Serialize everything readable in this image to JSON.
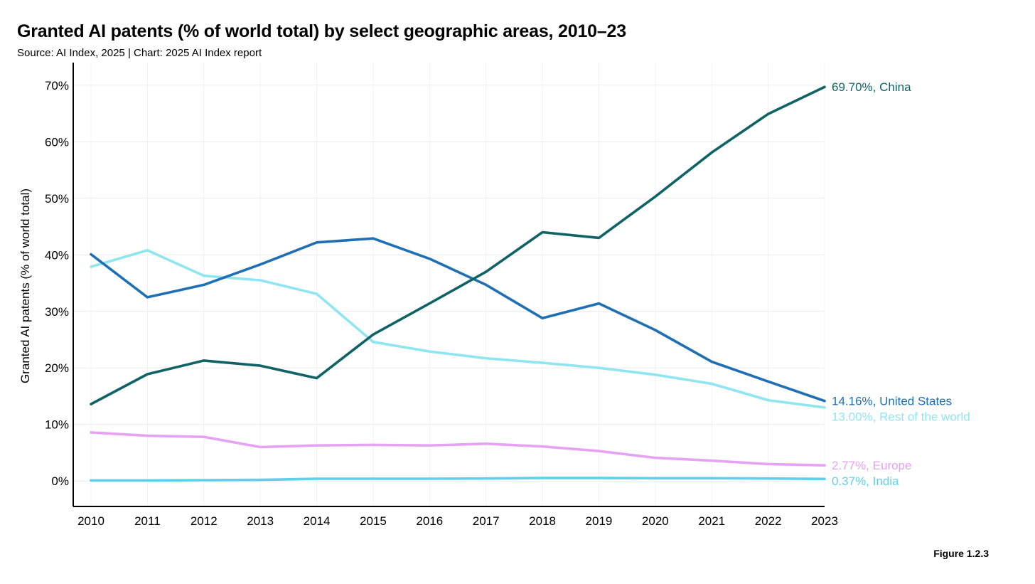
{
  "header": {
    "title": "Granted AI patents (% of world total) by select geographic areas, 2010–23",
    "subtitle": "Source: AI Index, 2025 | Chart: 2025 AI Index report"
  },
  "footer": {
    "figure_label": "Figure 1.2.3"
  },
  "chart_data": {
    "type": "line",
    "ylabel": "Granted AI patents (% of world total)",
    "xlabel": "",
    "x": [
      "2010",
      "2011",
      "2012",
      "2013",
      "2014",
      "2015",
      "2016",
      "2017",
      "2018",
      "2019",
      "2020",
      "2021",
      "2022",
      "2023"
    ],
    "ylim": [
      -4.5,
      74
    ],
    "yticks": [
      0,
      10,
      20,
      30,
      40,
      50,
      60,
      70
    ],
    "ytick_labels": [
      "0%",
      "10%",
      "20%",
      "30%",
      "40%",
      "50%",
      "60%",
      "70%"
    ],
    "grid": true,
    "series": [
      {
        "name": "Rest of the world",
        "color": "#8fe6f0",
        "end_label": "13.00%, Rest of the world",
        "values": [
          37.9,
          40.8,
          36.3,
          35.5,
          33.1,
          24.6,
          22.9,
          21.7,
          20.9,
          20.0,
          18.8,
          17.2,
          14.3,
          13.0
        ]
      },
      {
        "name": "Europe",
        "color": "#e6a3f3",
        "end_label": "2.77%, Europe",
        "values": [
          8.6,
          8.0,
          7.8,
          6.0,
          6.3,
          6.4,
          6.3,
          6.6,
          6.1,
          5.3,
          4.1,
          3.6,
          3.0,
          2.77
        ]
      },
      {
        "name": "India",
        "color": "#5fcfea",
        "end_label": "0.37%, India",
        "values": [
          0.1,
          0.1,
          0.15,
          0.2,
          0.4,
          0.4,
          0.4,
          0.45,
          0.55,
          0.55,
          0.5,
          0.5,
          0.45,
          0.37
        ]
      },
      {
        "name": "United States",
        "color": "#1f6fb4",
        "end_label": "14.16%, United States",
        "values": [
          40.1,
          32.5,
          34.7,
          38.3,
          42.2,
          42.9,
          39.3,
          34.7,
          28.8,
          31.4,
          26.7,
          21.1,
          17.6,
          14.16
        ]
      },
      {
        "name": "China",
        "color": "#0f6266",
        "end_label": "69.70%, China",
        "values": [
          13.6,
          18.9,
          21.3,
          20.4,
          18.2,
          25.9,
          31.4,
          37.0,
          44.0,
          43.0,
          50.3,
          58.1,
          64.9,
          69.7
        ]
      }
    ]
  }
}
